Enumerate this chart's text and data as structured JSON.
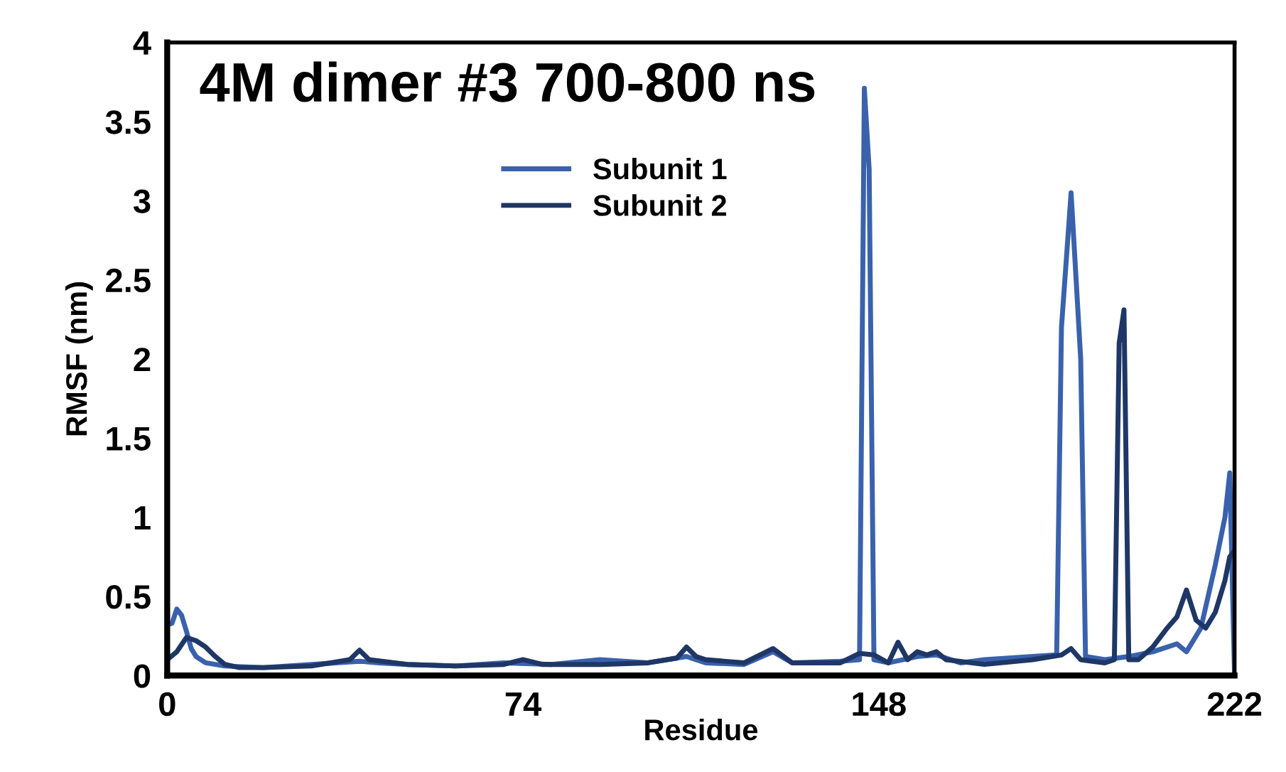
{
  "chart_data": {
    "type": "line",
    "title": "4M dimer #3 700-800 ns",
    "xlabel": "Residue",
    "ylabel": "RMSF (nm)",
    "xlim": [
      0,
      222
    ],
    "xticks": [
      0,
      74,
      148,
      222
    ],
    "ylim": [
      0,
      4
    ],
    "yticks": [
      0,
      0.5,
      1,
      1.5,
      2,
      2.5,
      3,
      3.5,
      4
    ],
    "legend": "top",
    "grid": false,
    "marker": "none",
    "line_style": "solid",
    "series": [
      {
        "name": "Subunit 1",
        "color": "#3a62ac",
        "x": [
          0,
          1,
          2,
          3,
          4,
          5,
          6,
          8,
          12,
          20,
          30,
          40,
          44,
          50,
          60,
          70,
          80,
          90,
          100,
          108,
          112,
          120,
          126,
          130,
          140,
          144,
          145,
          146,
          147,
          150,
          156,
          160,
          165,
          170,
          180,
          185,
          186,
          188,
          190,
          191,
          195,
          200,
          205,
          210,
          212,
          215,
          218,
          220,
          221,
          222
        ],
        "values": [
          0.32,
          0.33,
          0.42,
          0.38,
          0.28,
          0.17,
          0.12,
          0.08,
          0.06,
          0.05,
          0.07,
          0.09,
          0.08,
          0.07,
          0.06,
          0.08,
          0.07,
          0.1,
          0.08,
          0.12,
          0.08,
          0.07,
          0.15,
          0.08,
          0.09,
          0.1,
          3.71,
          3.2,
          0.1,
          0.08,
          0.12,
          0.13,
          0.08,
          0.1,
          0.12,
          0.13,
          2.2,
          3.05,
          2.0,
          0.12,
          0.1,
          0.12,
          0.15,
          0.2,
          0.15,
          0.3,
          0.7,
          1.0,
          1.28,
          0.0
        ]
      },
      {
        "name": "Subunit 2",
        "color": "#1f3766",
        "x": [
          0,
          2,
          4,
          6,
          8,
          10,
          12,
          15,
          20,
          30,
          38,
          40,
          42,
          50,
          60,
          70,
          74,
          78,
          90,
          100,
          106,
          108,
          110,
          112,
          120,
          126,
          130,
          140,
          144,
          147,
          150,
          152,
          154,
          156,
          158,
          160,
          162,
          170,
          180,
          186,
          188,
          190,
          195,
          197,
          198,
          199,
          200,
          202,
          205,
          208,
          210,
          212,
          214,
          216,
          218,
          220,
          221,
          222
        ],
        "values": [
          0.1,
          0.15,
          0.24,
          0.22,
          0.18,
          0.12,
          0.07,
          0.05,
          0.05,
          0.06,
          0.1,
          0.16,
          0.1,
          0.07,
          0.06,
          0.07,
          0.1,
          0.07,
          0.07,
          0.08,
          0.11,
          0.18,
          0.12,
          0.1,
          0.08,
          0.17,
          0.08,
          0.08,
          0.14,
          0.13,
          0.08,
          0.21,
          0.1,
          0.15,
          0.13,
          0.15,
          0.1,
          0.07,
          0.1,
          0.13,
          0.17,
          0.1,
          0.08,
          0.1,
          2.1,
          2.31,
          0.1,
          0.1,
          0.18,
          0.3,
          0.37,
          0.54,
          0.35,
          0.3,
          0.4,
          0.6,
          0.75,
          0.79
        ]
      }
    ]
  }
}
